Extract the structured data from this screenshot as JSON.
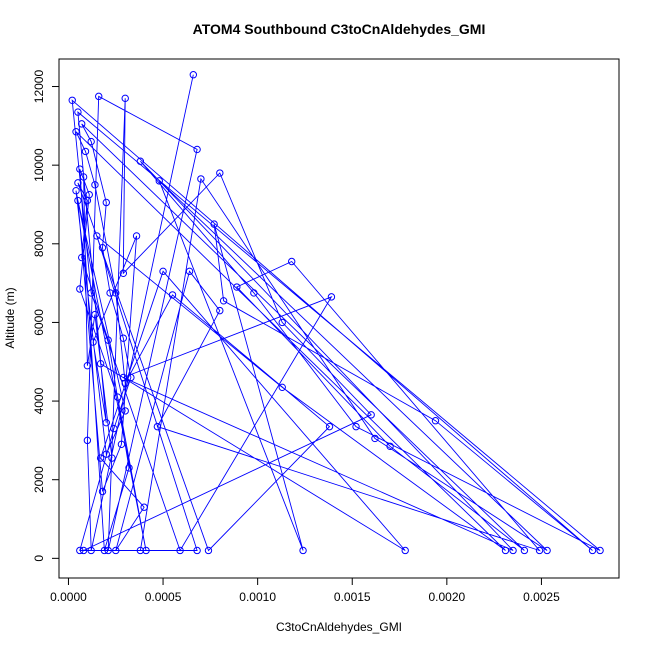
{
  "chart_data": {
    "type": "line",
    "title": "ATOM4 Southbound C3toCnAldehydes_GMI",
    "xlabel": "C3toCnAldehydes_GMI",
    "ylabel": "Altitude (m)",
    "xlim": [
      -5e-05,
      0.00291
    ],
    "ylim": [
      -500,
      12700
    ],
    "x_ticks": [
      0.0,
      0.0005,
      0.001,
      0.0015,
      0.002,
      0.0025
    ],
    "x_tick_labels": [
      "0.0000",
      "0.0005",
      "0.0010",
      "0.0015",
      "0.0020",
      "0.0025"
    ],
    "y_ticks": [
      0,
      2000,
      4000,
      6000,
      8000,
      10000,
      12000
    ],
    "y_tick_labels": [
      "0",
      "2000",
      "4000",
      "6000",
      "8000",
      "10000",
      "12000"
    ],
    "grid": false,
    "legend": "none",
    "series": [
      {
        "color": "#0000ff",
        "marker": "open-circle",
        "points": [
          [
            0.00066,
            12300
          ],
          [
            0.00012,
            200
          ],
          [
            0.0001,
            3000
          ],
          [
            0.00016,
            11750
          ],
          [
            0.00068,
            10400
          ],
          [
            0.00021,
            200
          ],
          [
            0.0003,
            11700
          ],
          [
            0.00029,
            7250
          ],
          [
            0.0008,
            9800
          ],
          [
            0.00113,
            6000
          ],
          [
            0.0016,
            3650
          ],
          [
            8e-05,
            200
          ],
          [
            0.00038,
            200
          ],
          [
            0.0007,
            9650
          ],
          [
            0.00162,
            3050
          ],
          [
            0.00253,
            200
          ],
          [
            0.00048,
            9600
          ],
          [
            0.00124,
            200
          ],
          [
            0.00077,
            8500
          ],
          [
            0.00082,
            6550
          ],
          [
            0.00194,
            3500
          ],
          [
            0.00277,
            200
          ],
          [
            2e-05,
            11650
          ],
          [
            0.00012,
            6750
          ],
          [
            0.00059,
            200
          ],
          [
            0.00139,
            6650
          ],
          [
            0.00029,
            4600
          ],
          [
            0.00235,
            200
          ],
          [
            0.00038,
            10100
          ],
          [
            0.00098,
            6750
          ],
          [
            0.00152,
            3350
          ],
          [
            0.00281,
            200
          ],
          [
            5e-05,
            11350
          ],
          [
            0.00017,
            4950
          ],
          [
            0.00178,
            200
          ],
          [
            0.0005,
            7300
          ],
          [
            0.00017,
            2550
          ],
          [
            0.0004,
            1300
          ],
          [
            0.00025,
            200
          ],
          [
            0.00064,
            7300
          ],
          [
            0.0008,
            6300
          ],
          [
            0.00047,
            3350
          ],
          [
            0.00249,
            200
          ],
          [
            0.00118,
            7550
          ],
          [
            0.00089,
            6900
          ],
          [
            0.0017,
            2850
          ],
          [
            0.00241,
            200
          ],
          [
            7e-05,
            11050
          ],
          [
            0.00012,
            10600
          ],
          [
            0.0002,
            9050
          ],
          [
            0.00018,
            7900
          ],
          [
            0.00022,
            6750
          ],
          [
            0.00029,
            5600
          ],
          [
            0.00033,
            4600
          ],
          [
            0.00024,
            3300
          ],
          [
            6e-05,
            200
          ],
          [
            0.00068,
            200
          ],
          [
            0.00015,
            8200
          ],
          [
            0.00113,
            4350
          ],
          [
            0.00231,
            200
          ],
          [
            4e-05,
            10850
          ],
          [
            9e-05,
            10350
          ],
          [
            0.00014,
            9500
          ],
          [
            0.00025,
            6750
          ],
          [
            0.0003,
            4450
          ],
          [
            0.00055,
            6700
          ],
          [
            0.00138,
            3350
          ],
          [
            0.00074,
            200
          ],
          [
            5e-05,
            9550
          ],
          [
            0.0001,
            9100
          ],
          [
            7e-05,
            7650
          ],
          [
            0.00021,
            5550
          ],
          [
            0.00032,
            2300
          ],
          [
            0.00019,
            200
          ],
          [
            6e-05,
            9900
          ],
          [
            0.00011,
            9250
          ],
          [
            6e-05,
            6850
          ],
          [
            0.00026,
            4100
          ],
          [
            0.00041,
            200
          ],
          [
            4e-05,
            9350
          ],
          [
            0.0002,
            2650
          ],
          [
            0.0003,
            3750
          ],
          [
            5e-05,
            9100
          ],
          [
            0.00018,
            1700
          ],
          [
            0.00028,
            2900
          ],
          [
            0.00036,
            8200
          ],
          [
            0.00013,
            5500
          ],
          [
            0.0002,
            3450
          ],
          [
            8e-05,
            9700
          ],
          [
            0.0001,
            4900
          ],
          [
            0.00014,
            6200
          ],
          [
            0.00023,
            2550
          ]
        ]
      }
    ]
  }
}
